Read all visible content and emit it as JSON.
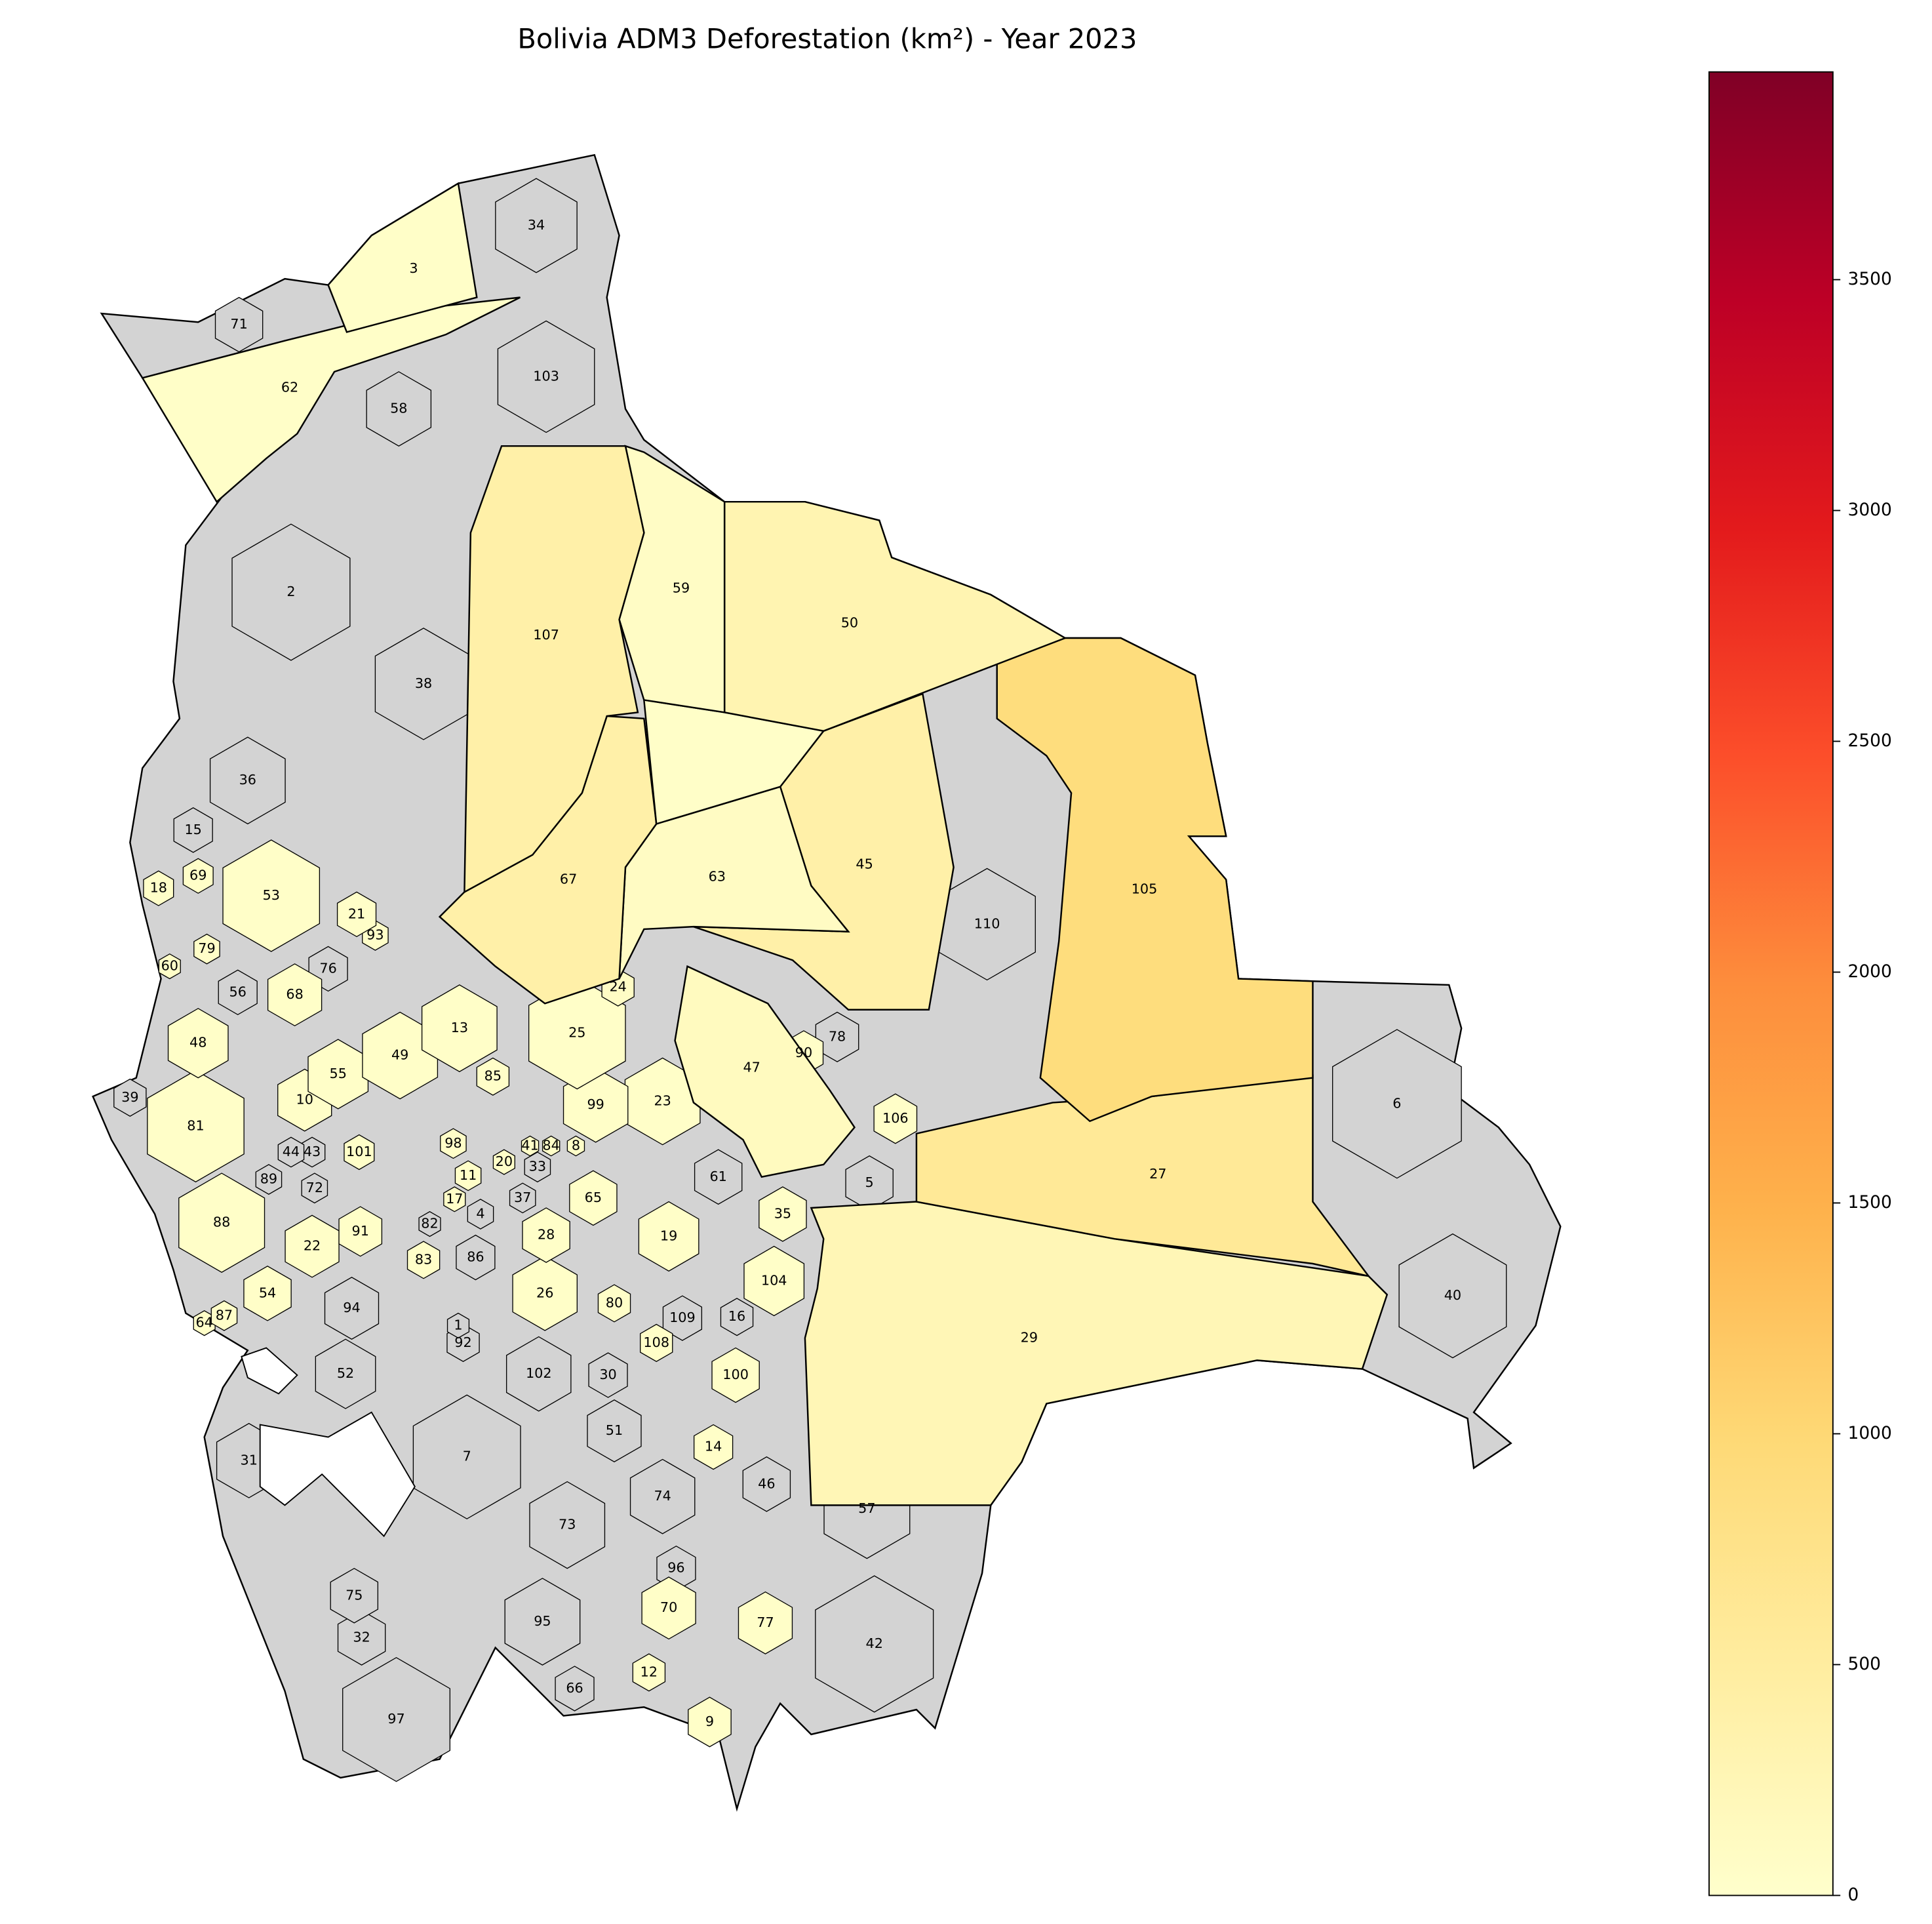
{
  "chart_data": {
    "type": "choropleth",
    "title": "Bolivia ADM3 Deforestation (km²) - Year 2023",
    "colormap": "YlOrRd",
    "missing_color": "#d3d3d3",
    "colorbar": {
      "lim": [
        0,
        3950
      ],
      "ticks": [
        0,
        500,
        1000,
        1500,
        2000,
        2500,
        3000,
        3500
      ]
    },
    "regions": [
      {
        "label": "3",
        "value": 40
      },
      {
        "label": "34",
        "value": null
      },
      {
        "label": "71",
        "value": null
      },
      {
        "label": "62",
        "value": 40
      },
      {
        "label": "58",
        "value": null
      },
      {
        "label": "103",
        "value": null
      },
      {
        "label": "2",
        "value": null
      },
      {
        "label": "38",
        "value": null
      },
      {
        "label": "107",
        "value": 400
      },
      {
        "label": "59",
        "value": 80
      },
      {
        "label": "50",
        "value": 300
      },
      {
        "label": null,
        "value": 40
      },
      {
        "label": "36",
        "value": null
      },
      {
        "label": "15",
        "value": null
      },
      {
        "label": "67",
        "value": 400
      },
      {
        "label": "63",
        "value": 100
      },
      {
        "label": "45",
        "value": 400
      },
      {
        "label": "110",
        "value": null
      },
      {
        "label": "105",
        "value": 900
      },
      {
        "label": "18",
        "value": 40
      },
      {
        "label": "69",
        "value": 40
      },
      {
        "label": "53",
        "value": 40
      },
      {
        "label": "21",
        "value": 40
      },
      {
        "label": "93",
        "value": 40
      },
      {
        "label": "76",
        "value": null
      },
      {
        "label": "79",
        "value": 40
      },
      {
        "label": "60",
        "value": 40
      },
      {
        "label": "56",
        "value": null
      },
      {
        "label": "68",
        "value": 40
      },
      {
        "label": "24",
        "value": 80
      },
      {
        "label": "13",
        "value": 40
      },
      {
        "label": "25",
        "value": 40
      },
      {
        "label": "78",
        "value": null
      },
      {
        "label": "90",
        "value": 40
      },
      {
        "label": "47",
        "value": 150
      },
      {
        "label": "48",
        "value": 40
      },
      {
        "label": "49",
        "value": 40
      },
      {
        "label": "55",
        "value": 40
      },
      {
        "label": "10",
        "value": 40
      },
      {
        "label": "39",
        "value": null
      },
      {
        "label": "81",
        "value": 40
      },
      {
        "label": "85",
        "value": 40
      },
      {
        "label": "99",
        "value": 40
      },
      {
        "label": "23",
        "value": 40
      },
      {
        "label": "106",
        "value": 40
      },
      {
        "label": "6",
        "value": null
      },
      {
        "label": "98",
        "value": 40
      },
      {
        "label": "41",
        "value": 40
      },
      {
        "label": "84",
        "value": 40
      },
      {
        "label": "8",
        "value": 40
      },
      {
        "label": "44",
        "value": null
      },
      {
        "label": "43",
        "value": null
      },
      {
        "label": "101",
        "value": 40
      },
      {
        "label": "20",
        "value": 40
      },
      {
        "label": "33",
        "value": null
      },
      {
        "label": "11",
        "value": 40
      },
      {
        "label": "61",
        "value": null
      },
      {
        "label": "5",
        "value": null
      },
      {
        "label": "27",
        "value": 600
      },
      {
        "label": "89",
        "value": null
      },
      {
        "label": "72",
        "value": null
      },
      {
        "label": "17",
        "value": 40
      },
      {
        "label": "4",
        "value": null
      },
      {
        "label": "37",
        "value": null
      },
      {
        "label": "65",
        "value": 40
      },
      {
        "label": "35",
        "value": 40
      },
      {
        "label": "88",
        "value": 40
      },
      {
        "label": "91",
        "value": 40
      },
      {
        "label": "82",
        "value": null
      },
      {
        "label": "28",
        "value": 40
      },
      {
        "label": "19",
        "value": 40
      },
      {
        "label": "22",
        "value": 40
      },
      {
        "label": "83",
        "value": 40
      },
      {
        "label": "86",
        "value": null
      },
      {
        "label": "104",
        "value": 40
      },
      {
        "label": "40",
        "value": null
      },
      {
        "label": "54",
        "value": 40
      },
      {
        "label": "94",
        "value": null
      },
      {
        "label": "26",
        "value": 40
      },
      {
        "label": "80",
        "value": 40
      },
      {
        "label": "109",
        "value": null
      },
      {
        "label": "16",
        "value": null
      },
      {
        "label": "87",
        "value": 40
      },
      {
        "label": "64",
        "value": 40
      },
      {
        "label": "1",
        "value": null
      },
      {
        "label": "29",
        "value": 250
      },
      {
        "label": "92",
        "value": null
      },
      {
        "label": "108",
        "value": 40
      },
      {
        "label": "102",
        "value": null
      },
      {
        "label": "30",
        "value": null
      },
      {
        "label": "52",
        "value": null
      },
      {
        "label": "100",
        "value": 40
      },
      {
        "label": "14",
        "value": 40
      },
      {
        "label": "51",
        "value": null
      },
      {
        "label": "7",
        "value": null
      },
      {
        "label": "31",
        "value": null
      },
      {
        "label": "46",
        "value": null
      },
      {
        "label": "57",
        "value": null
      },
      {
        "label": "74",
        "value": null
      },
      {
        "label": "73",
        "value": null
      },
      {
        "label": "96",
        "value": null
      },
      {
        "label": "75",
        "value": null
      },
      {
        "label": "70",
        "value": 40
      },
      {
        "label": "77",
        "value": 40
      },
      {
        "label": "95",
        "value": null
      },
      {
        "label": "42",
        "value": null
      },
      {
        "label": "32",
        "value": null
      },
      {
        "label": "12",
        "value": 40
      },
      {
        "label": "66",
        "value": null
      },
      {
        "label": "9",
        "value": 40
      },
      {
        "label": "97",
        "value": null
      }
    ]
  }
}
